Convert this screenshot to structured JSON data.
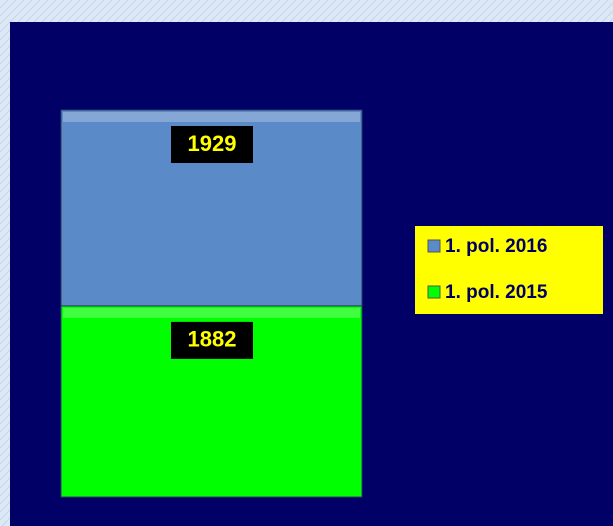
{
  "chart_data": {
    "type": "stacked_bar",
    "categories": [
      null
    ],
    "series": [
      {
        "name": "1. pol. 2015",
        "color": "#00ff00",
        "values": [
          1882
        ]
      },
      {
        "name": "1. pol. 2016",
        "color": "#5b8ac8",
        "values": [
          1929
        ]
      }
    ],
    "legend": "right"
  }
}
